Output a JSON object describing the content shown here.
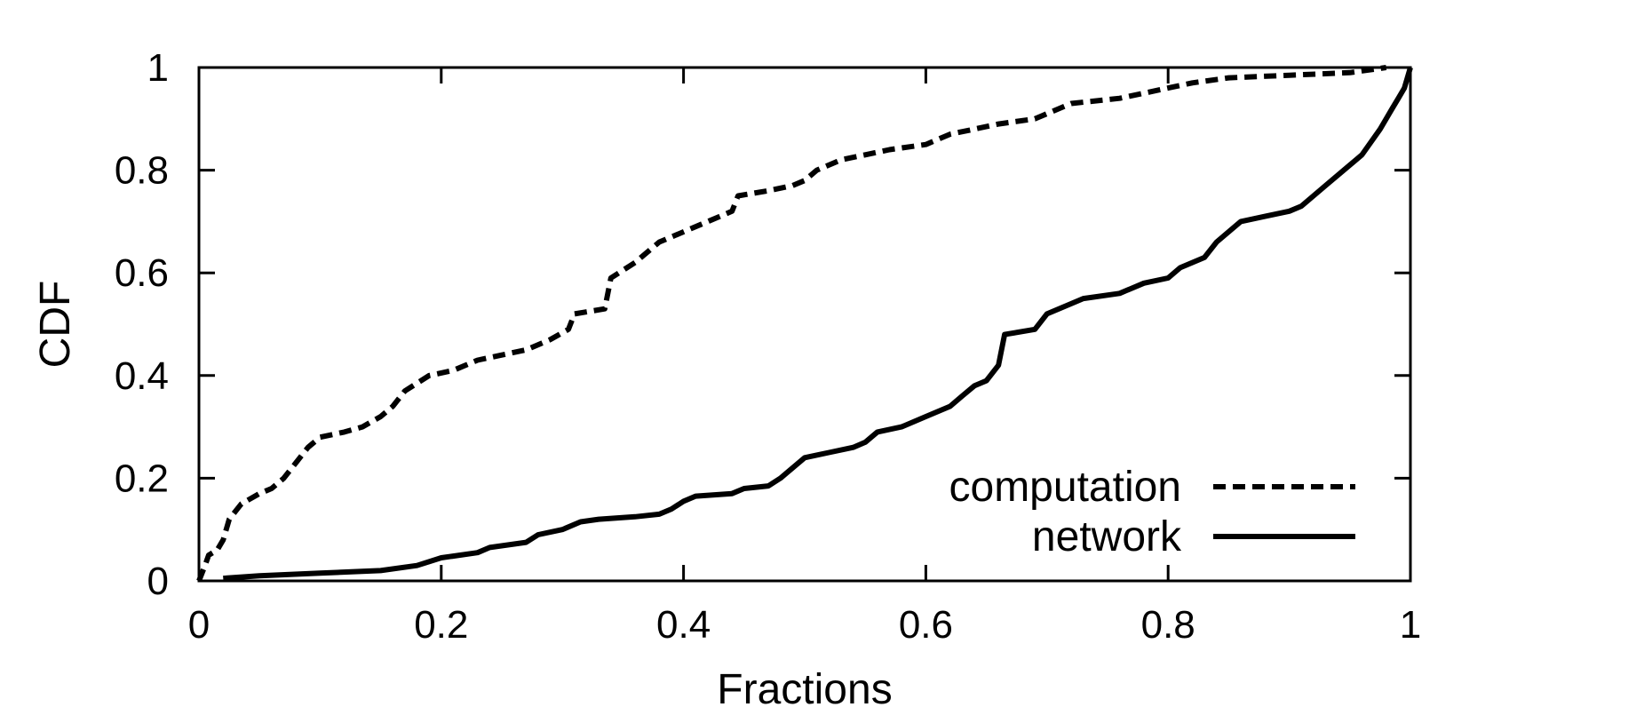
{
  "chart_data": {
    "type": "line",
    "xlabel": "Fractions",
    "ylabel": "CDF",
    "xlim": [
      0,
      1
    ],
    "ylim": [
      0,
      1
    ],
    "x_ticks": [
      "0",
      "0.2",
      "0.4",
      "0.6",
      "0.8",
      "1"
    ],
    "y_ticks": [
      "0",
      "0.2",
      "0.4",
      "0.6",
      "0.8",
      "1"
    ],
    "grid": false,
    "legend_position": "bottom-right",
    "series": [
      {
        "name": "computation",
        "style": "dashed",
        "color": "#000000",
        "points": [
          [
            0.0,
            0.0
          ],
          [
            0.005,
            0.03
          ],
          [
            0.008,
            0.05
          ],
          [
            0.015,
            0.06
          ],
          [
            0.02,
            0.08
          ],
          [
            0.025,
            0.12
          ],
          [
            0.035,
            0.15
          ],
          [
            0.05,
            0.17
          ],
          [
            0.06,
            0.18
          ],
          [
            0.07,
            0.2
          ],
          [
            0.08,
            0.23
          ],
          [
            0.09,
            0.26
          ],
          [
            0.1,
            0.28
          ],
          [
            0.12,
            0.29
          ],
          [
            0.135,
            0.3
          ],
          [
            0.15,
            0.32
          ],
          [
            0.16,
            0.34
          ],
          [
            0.17,
            0.37
          ],
          [
            0.19,
            0.4
          ],
          [
            0.21,
            0.41
          ],
          [
            0.23,
            0.43
          ],
          [
            0.25,
            0.44
          ],
          [
            0.27,
            0.45
          ],
          [
            0.29,
            0.47
          ],
          [
            0.305,
            0.49
          ],
          [
            0.31,
            0.52
          ],
          [
            0.335,
            0.53
          ],
          [
            0.34,
            0.59
          ],
          [
            0.36,
            0.62
          ],
          [
            0.38,
            0.66
          ],
          [
            0.4,
            0.68
          ],
          [
            0.42,
            0.7
          ],
          [
            0.44,
            0.72
          ],
          [
            0.445,
            0.75
          ],
          [
            0.47,
            0.76
          ],
          [
            0.49,
            0.77
          ],
          [
            0.5,
            0.78
          ],
          [
            0.51,
            0.8
          ],
          [
            0.53,
            0.82
          ],
          [
            0.55,
            0.83
          ],
          [
            0.57,
            0.84
          ],
          [
            0.6,
            0.85
          ],
          [
            0.62,
            0.87
          ],
          [
            0.64,
            0.88
          ],
          [
            0.66,
            0.89
          ],
          [
            0.69,
            0.9
          ],
          [
            0.7,
            0.91
          ],
          [
            0.72,
            0.93
          ],
          [
            0.76,
            0.94
          ],
          [
            0.78,
            0.95
          ],
          [
            0.8,
            0.96
          ],
          [
            0.82,
            0.97
          ],
          [
            0.85,
            0.98
          ],
          [
            0.9,
            0.985
          ],
          [
            0.95,
            0.99
          ],
          [
            0.98,
            1.0
          ]
        ]
      },
      {
        "name": "network",
        "style": "solid",
        "color": "#000000",
        "points": [
          [
            0.02,
            0.005
          ],
          [
            0.05,
            0.01
          ],
          [
            0.1,
            0.015
          ],
          [
            0.15,
            0.02
          ],
          [
            0.18,
            0.03
          ],
          [
            0.2,
            0.045
          ],
          [
            0.23,
            0.055
          ],
          [
            0.24,
            0.065
          ],
          [
            0.27,
            0.075
          ],
          [
            0.28,
            0.09
          ],
          [
            0.3,
            0.1
          ],
          [
            0.315,
            0.115
          ],
          [
            0.33,
            0.12
          ],
          [
            0.36,
            0.125
          ],
          [
            0.38,
            0.13
          ],
          [
            0.39,
            0.14
          ],
          [
            0.4,
            0.155
          ],
          [
            0.41,
            0.165
          ],
          [
            0.44,
            0.17
          ],
          [
            0.45,
            0.18
          ],
          [
            0.47,
            0.185
          ],
          [
            0.48,
            0.2
          ],
          [
            0.49,
            0.22
          ],
          [
            0.5,
            0.24
          ],
          [
            0.52,
            0.25
          ],
          [
            0.54,
            0.26
          ],
          [
            0.55,
            0.27
          ],
          [
            0.56,
            0.29
          ],
          [
            0.58,
            0.3
          ],
          [
            0.6,
            0.32
          ],
          [
            0.62,
            0.34
          ],
          [
            0.63,
            0.36
          ],
          [
            0.64,
            0.38
          ],
          [
            0.65,
            0.39
          ],
          [
            0.66,
            0.42
          ],
          [
            0.665,
            0.48
          ],
          [
            0.69,
            0.49
          ],
          [
            0.7,
            0.52
          ],
          [
            0.72,
            0.54
          ],
          [
            0.73,
            0.55
          ],
          [
            0.76,
            0.56
          ],
          [
            0.78,
            0.58
          ],
          [
            0.8,
            0.59
          ],
          [
            0.81,
            0.61
          ],
          [
            0.83,
            0.63
          ],
          [
            0.84,
            0.66
          ],
          [
            0.86,
            0.7
          ],
          [
            0.88,
            0.71
          ],
          [
            0.9,
            0.72
          ],
          [
            0.91,
            0.73
          ],
          [
            0.93,
            0.77
          ],
          [
            0.945,
            0.8
          ],
          [
            0.96,
            0.83
          ],
          [
            0.975,
            0.88
          ],
          [
            0.985,
            0.92
          ],
          [
            0.99,
            0.94
          ],
          [
            0.995,
            0.96
          ],
          [
            1.0,
            1.0
          ]
        ]
      }
    ]
  }
}
